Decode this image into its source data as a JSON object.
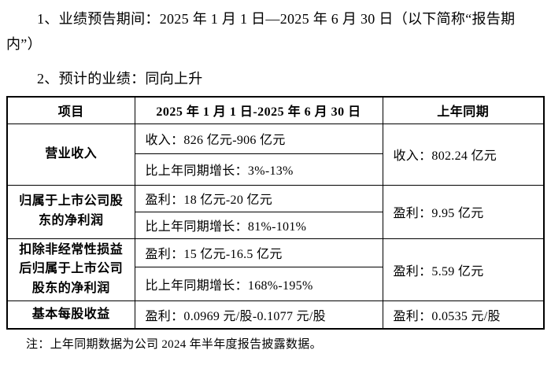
{
  "colors": {
    "background": "#ffffff",
    "text": "#000000",
    "table_border": "#000000"
  },
  "intro": {
    "paragraph1": "1、业绩预告期间：2025 年 1 月 1 日—2025 年 6 月 30 日（以下简称“报告期内”）",
    "paragraph2": "2、预计的业绩：同向上升"
  },
  "table": {
    "headers": {
      "item": "项目",
      "current_period": "2025 年 1 月 1 日-2025 年 6 月 30 日",
      "prior_period": "上年同期"
    },
    "rows": [
      {
        "item": "营业收入",
        "current": [
          "收入：826 亿元-906 亿元",
          "比上年同期增长：3%-13%"
        ],
        "prior": "收入：802.24 亿元"
      },
      {
        "item": "归属于上市公司股东的净利润",
        "current": [
          "盈利：18 亿元-20 亿元",
          "比上年同期增长：81%-101%"
        ],
        "prior": "盈利：9.95 亿元"
      },
      {
        "item": "扣除非经常性损益后归属于上市公司股东的净利润",
        "current": [
          "盈利：15 亿元-16.5 亿元",
          "比上年同期增长：168%-195%"
        ],
        "prior": "盈利：5.59 亿元"
      },
      {
        "item": "基本每股收益",
        "current": [
          "盈利：0.0969 元/股-0.1077 元/股"
        ],
        "prior": "盈利：0.0535 元/股"
      }
    ]
  },
  "footnote": "注：上年同期数据为公司 2024 年半年度报告披露数据。"
}
